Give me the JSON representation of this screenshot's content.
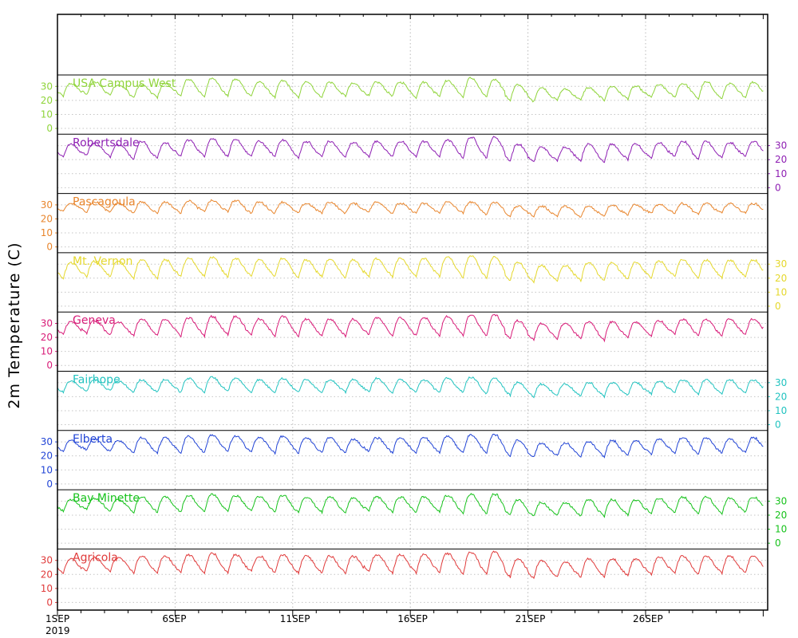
{
  "chart_data": {
    "type": "line",
    "ylabel": "2m Temperature (C)",
    "x_ticks": [
      "1SEP",
      "6SEP",
      "11SEP",
      "16SEP",
      "21SEP",
      "26SEP"
    ],
    "x_year_label": "2019",
    "x_range": [
      "2019-09-01",
      "2019-10-01"
    ],
    "ylim": [
      -3,
      37
    ],
    "y_ticks": [
      0,
      10,
      20,
      30
    ],
    "grid": true,
    "series": [
      {
        "name": "USA Campus West",
        "color": "#8fd43a",
        "axis_side": "left",
        "daily_min": [
          23,
          24,
          24,
          22,
          22,
          23,
          22,
          23,
          23,
          22,
          22,
          22,
          23,
          23,
          23,
          22,
          23,
          22,
          22,
          20,
          19,
          20,
          20,
          20,
          21,
          22,
          22,
          21,
          21,
          22,
          23
        ],
        "daily_max": [
          32,
          33,
          31,
          31,
          32,
          35,
          36,
          35,
          33,
          34,
          33,
          33,
          32,
          33,
          33,
          33,
          34,
          36,
          35,
          31,
          29,
          28,
          29,
          30,
          30,
          31,
          32,
          33,
          32,
          33,
          34
        ]
      },
      {
        "name": "Robertsdale",
        "color": "#8e1fb3",
        "axis_side": "right",
        "daily_min": [
          22,
          23,
          22,
          20,
          21,
          22,
          22,
          22,
          22,
          22,
          21,
          22,
          22,
          22,
          22,
          22,
          22,
          21,
          21,
          19,
          18,
          19,
          19,
          18,
          20,
          21,
          22,
          20,
          21,
          22,
          23
        ],
        "daily_max": [
          31,
          32,
          31,
          33,
          32,
          34,
          35,
          34,
          33,
          34,
          33,
          33,
          32,
          33,
          33,
          33,
          34,
          36,
          36,
          31,
          29,
          29,
          31,
          31,
          31,
          32,
          33,
          33,
          32,
          33,
          34
        ]
      },
      {
        "name": "Pascagoula",
        "color": "#e8852c",
        "axis_side": "left",
        "daily_min": [
          25,
          25,
          25,
          24,
          24,
          24,
          25,
          25,
          24,
          24,
          24,
          24,
          24,
          25,
          24,
          24,
          24,
          24,
          23,
          22,
          22,
          22,
          21,
          22,
          23,
          24,
          24,
          23,
          24,
          24,
          24
        ],
        "daily_max": [
          31,
          32,
          31,
          32,
          32,
          33,
          33,
          33,
          32,
          32,
          31,
          32,
          31,
          32,
          31,
          31,
          32,
          32,
          32,
          29,
          29,
          29,
          29,
          30,
          30,
          30,
          31,
          31,
          31,
          31,
          31
        ]
      },
      {
        "name": "Mt. Vernon",
        "color": "#e5d82d",
        "axis_side": "right",
        "daily_min": [
          20,
          21,
          21,
          20,
          20,
          21,
          21,
          21,
          21,
          21,
          20,
          21,
          20,
          21,
          21,
          21,
          21,
          20,
          20,
          18,
          17,
          18,
          18,
          18,
          19,
          20,
          21,
          20,
          20,
          21,
          22
        ],
        "daily_max": [
          31,
          32,
          32,
          33,
          33,
          34,
          35,
          34,
          33,
          34,
          33,
          33,
          33,
          34,
          34,
          34,
          35,
          36,
          35,
          31,
          29,
          29,
          31,
          31,
          31,
          32,
          33,
          33,
          33,
          33,
          34
        ]
      },
      {
        "name": "Geneva",
        "color": "#d81b78",
        "axis_side": "left",
        "daily_min": [
          22,
          23,
          22,
          21,
          21,
          21,
          21,
          22,
          22,
          21,
          21,
          21,
          21,
          22,
          21,
          21,
          21,
          21,
          21,
          19,
          18,
          19,
          19,
          18,
          20,
          21,
          22,
          21,
          21,
          22,
          23
        ],
        "daily_max": [
          31,
          32,
          31,
          33,
          33,
          34,
          35,
          35,
          33,
          35,
          33,
          33,
          33,
          34,
          34,
          34,
          35,
          36,
          36,
          32,
          30,
          30,
          31,
          31,
          31,
          32,
          33,
          33,
          33,
          33,
          34
        ]
      },
      {
        "name": "Fairhope",
        "color": "#22c3c0",
        "axis_side": "right",
        "daily_min": [
          23,
          24,
          24,
          23,
          23,
          23,
          23,
          24,
          23,
          23,
          23,
          23,
          23,
          23,
          23,
          23,
          23,
          23,
          22,
          21,
          20,
          21,
          20,
          20,
          21,
          22,
          23,
          22,
          22,
          23,
          24
        ],
        "daily_max": [
          31,
          32,
          31,
          32,
          32,
          33,
          34,
          33,
          32,
          33,
          32,
          32,
          32,
          33,
          32,
          32,
          33,
          34,
          33,
          30,
          29,
          29,
          30,
          30,
          30,
          31,
          32,
          32,
          32,
          32,
          33
        ]
      },
      {
        "name": "Elberta",
        "color": "#2144d6",
        "axis_side": "left",
        "daily_min": [
          23,
          24,
          23,
          22,
          22,
          22,
          22,
          23,
          23,
          22,
          22,
          22,
          22,
          23,
          22,
          22,
          22,
          22,
          22,
          20,
          19,
          20,
          19,
          19,
          20,
          21,
          22,
          21,
          22,
          22,
          23
        ],
        "daily_max": [
          31,
          32,
          31,
          33,
          33,
          34,
          35,
          34,
          33,
          34,
          33,
          33,
          32,
          33,
          33,
          33,
          34,
          35,
          35,
          31,
          29,
          29,
          30,
          31,
          31,
          32,
          33,
          33,
          32,
          33,
          34
        ]
      },
      {
        "name": "Bay Minette",
        "color": "#17c21c",
        "axis_side": "right",
        "daily_min": [
          23,
          24,
          23,
          22,
          22,
          22,
          22,
          23,
          23,
          22,
          22,
          22,
          22,
          23,
          22,
          22,
          22,
          21,
          21,
          20,
          19,
          20,
          19,
          19,
          20,
          21,
          22,
          21,
          21,
          22,
          23
        ],
        "daily_max": [
          31,
          32,
          31,
          33,
          33,
          34,
          35,
          34,
          33,
          34,
          33,
          33,
          32,
          33,
          33,
          33,
          34,
          35,
          35,
          31,
          29,
          29,
          31,
          31,
          31,
          32,
          33,
          33,
          32,
          33,
          34
        ]
      },
      {
        "name": "Agricola",
        "color": "#e03a3a",
        "axis_side": "left",
        "daily_min": [
          21,
          22,
          22,
          21,
          21,
          21,
          21,
          21,
          22,
          21,
          21,
          21,
          21,
          22,
          21,
          21,
          21,
          20,
          20,
          18,
          17,
          18,
          18,
          18,
          19,
          20,
          21,
          20,
          21,
          21,
          22
        ],
        "daily_max": [
          31,
          32,
          32,
          33,
          33,
          34,
          35,
          34,
          33,
          34,
          33,
          33,
          33,
          34,
          34,
          34,
          35,
          36,
          36,
          31,
          30,
          29,
          31,
          31,
          31,
          32,
          33,
          33,
          33,
          33,
          34
        ]
      }
    ]
  }
}
